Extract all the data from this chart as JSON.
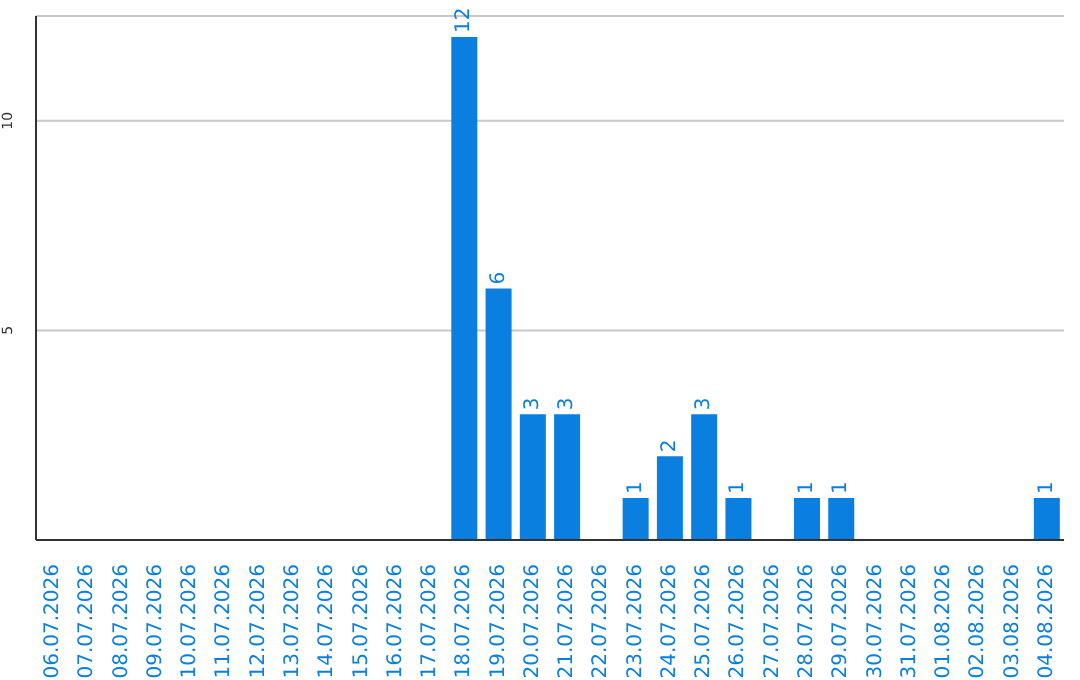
{
  "chart_data": {
    "type": "bar",
    "categories": [
      "06.07.2026",
      "07.07.2026",
      "08.07.2026",
      "09.07.2026",
      "10.07.2026",
      "11.07.2026",
      "12.07.2026",
      "13.07.2026",
      "14.07.2026",
      "15.07.2026",
      "16.07.2026",
      "17.07.2026",
      "18.07.2026",
      "19.07.2026",
      "20.07.2026",
      "21.07.2026",
      "22.07.2026",
      "23.07.2026",
      "24.07.2026",
      "25.07.2026",
      "26.07.2026",
      "27.07.2026",
      "28.07.2026",
      "29.07.2026",
      "30.07.2026",
      "31.07.2026",
      "01.08.2026",
      "02.08.2026",
      "03.08.2026",
      "04.08.2026"
    ],
    "values": [
      0,
      0,
      0,
      0,
      0,
      0,
      0,
      0,
      0,
      0,
      0,
      0,
      12,
      6,
      3,
      3,
      0,
      1,
      2,
      3,
      1,
      0,
      1,
      1,
      0,
      0,
      0,
      0,
      0,
      1
    ],
    "value_labels": [
      null,
      null,
      null,
      null,
      null,
      null,
      null,
      null,
      null,
      null,
      null,
      null,
      "12",
      "6",
      "3",
      "3",
      null,
      "1",
      "2",
      "3",
      "1",
      null,
      "1",
      "1",
      null,
      null,
      null,
      null,
      null,
      "1"
    ],
    "color": "#0a7fe0",
    "ylim": [
      0,
      12.5
    ],
    "yticks": [
      5,
      10
    ],
    "grid": "y"
  }
}
